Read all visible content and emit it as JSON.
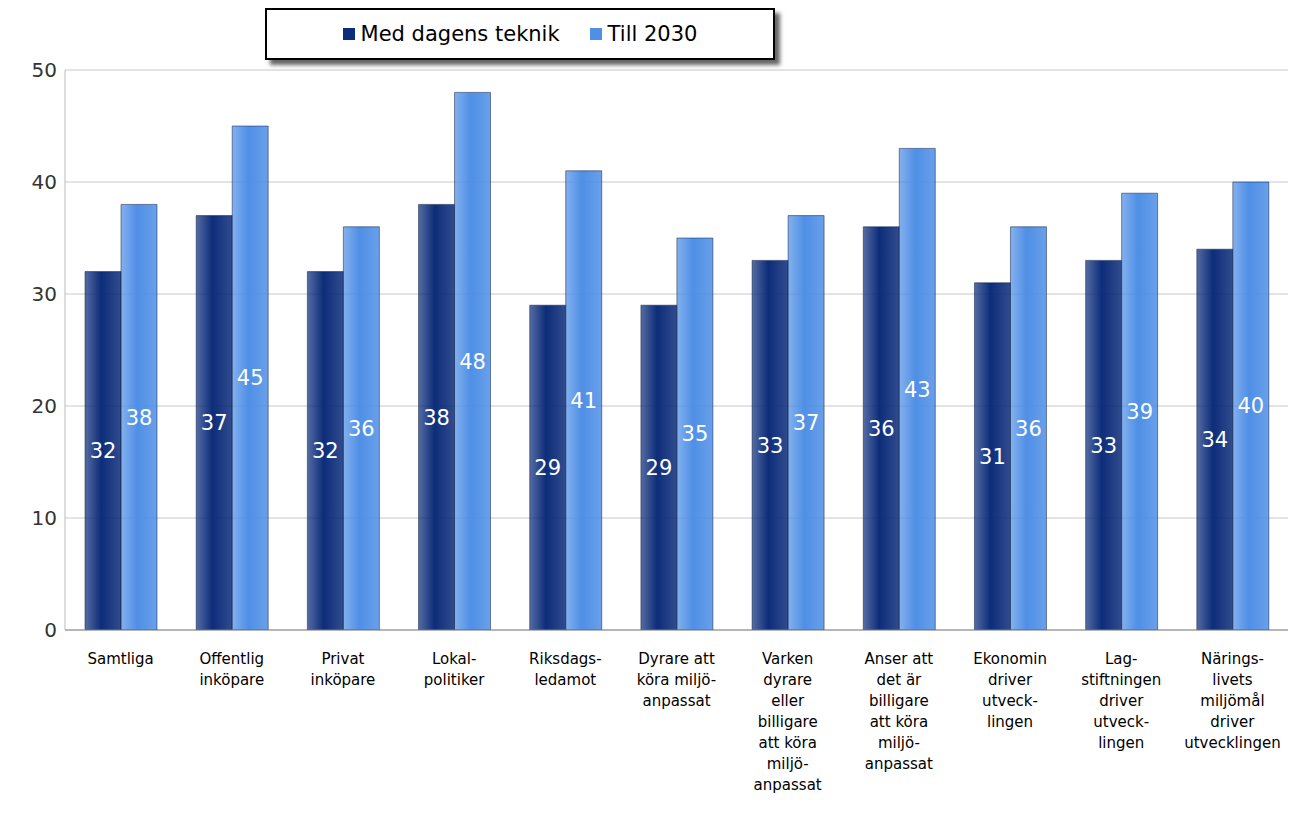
{
  "chart_data": {
    "type": "bar",
    "categories": [
      "Samtliga",
      "Offentlig\ninköpare",
      "Privat\ninköpare",
      "Lokal-\npolitiker",
      "Riksdags-\nledamot",
      "Dyrare att\nköra miljö-\nanpassat",
      "Varken\ndyrare\neller\nbilligare\natt köra\nmiljö-\nanpassat",
      "Anser att\ndet är\nbilligare\natt köra\nmiljö-\nanpassat",
      "Ekonomin\ndriver\nutveck-\nlingen",
      "Lag-\nstiftningen\ndriver\nutveck-\nlingen",
      "Närings-\nlivets\nmiljömål\ndriver\nutvecklingen"
    ],
    "series": [
      {
        "name": "Med dagens teknik",
        "color": "#0d2d7a",
        "values": [
          32,
          37,
          32,
          38,
          29,
          29,
          33,
          36,
          31,
          33,
          34
        ]
      },
      {
        "name": "Till 2030",
        "color": "#4f8fe6",
        "values": [
          38,
          45,
          36,
          48,
          41,
          35,
          37,
          43,
          36,
          39,
          40
        ]
      }
    ],
    "ylim": [
      0,
      50
    ],
    "yticks": [
      0,
      10,
      20,
      30,
      40,
      50
    ],
    "grid": true,
    "data_labels": true,
    "legend": "top"
  }
}
